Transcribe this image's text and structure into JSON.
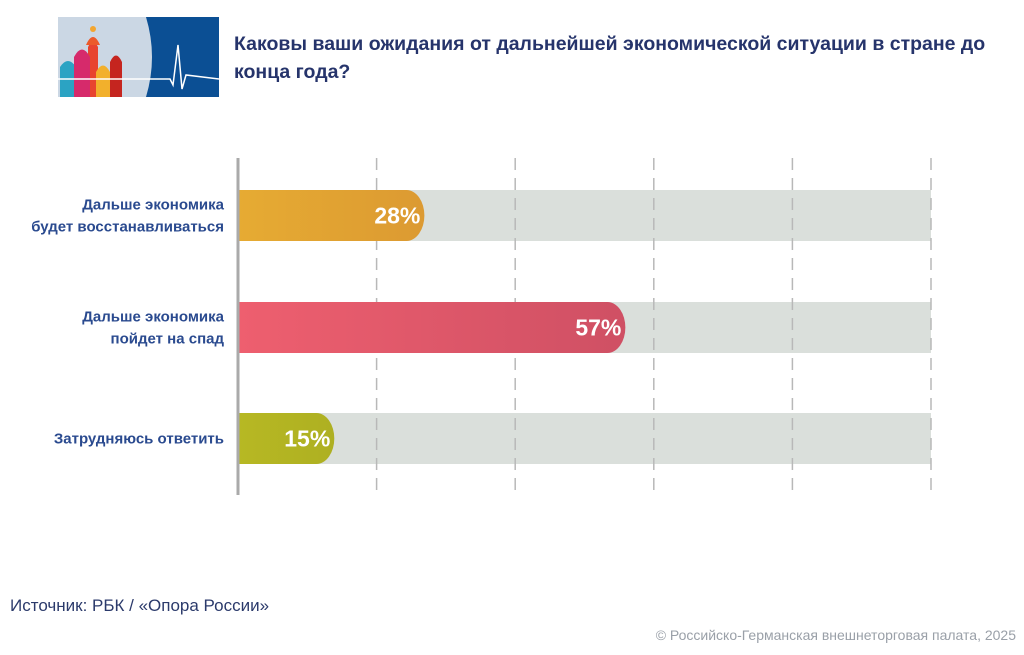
{
  "title": "Каковы ваши ожидания от дальнейшей экономической ситуации в стране до конца года?",
  "source": "Источник: РБК / «Опора России»",
  "copyright": "© Российско-Германская внешнеторговая палата, 2025",
  "logo": {
    "description_icon": "st-basil-cathedral-heartbeat-logo"
  },
  "chart_data": {
    "type": "bar",
    "orientation": "horizontal",
    "categories": [
      [
        "Дальше экономика",
        "будет восстанавливаться"
      ],
      [
        "Дальше экономика",
        "пойдет на спад"
      ],
      [
        "Затрудняюсь ответить"
      ]
    ],
    "values": [
      28,
      57,
      15
    ],
    "value_labels": [
      "28%",
      "57%",
      "15%"
    ],
    "xlim": [
      0,
      100
    ],
    "grid": true,
    "colors": [
      [
        "#e6ab33",
        "#dc9a32"
      ],
      [
        "#ee5f6f",
        "#cf5064"
      ],
      [
        "#b7b823",
        "#aeb022"
      ]
    ],
    "track_color": "#dadfdb"
  }
}
